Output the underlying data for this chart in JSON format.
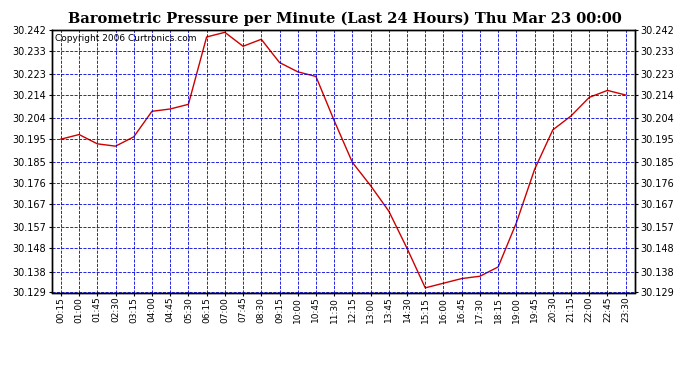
{
  "title": "Barometric Pressure per Minute (Last 24 Hours) Thu Mar 23 00:00",
  "copyright": "Copyright 2006 Curtronics.com",
  "plot_bg_color": "#ffffff",
  "grid_color": "#0000dd",
  "line_color": "#cc0000",
  "outer_bg": "#ffffff",
  "border_color": "#000000",
  "ylim": [
    30.129,
    30.242
  ],
  "yticks": [
    30.129,
    30.138,
    30.148,
    30.157,
    30.167,
    30.176,
    30.185,
    30.195,
    30.204,
    30.214,
    30.223,
    30.233,
    30.242
  ],
  "xtick_labels": [
    "00:15",
    "01:00",
    "01:45",
    "02:30",
    "03:15",
    "04:00",
    "04:45",
    "05:30",
    "06:15",
    "07:00",
    "07:45",
    "08:30",
    "09:15",
    "10:00",
    "10:45",
    "11:30",
    "12:15",
    "13:00",
    "13:45",
    "14:30",
    "15:15",
    "16:00",
    "16:45",
    "17:30",
    "18:15",
    "19:00",
    "19:45",
    "20:30",
    "21:15",
    "22:00",
    "22:45",
    "23:30"
  ],
  "x_values": [
    0,
    1,
    2,
    3,
    4,
    5,
    6,
    7,
    8,
    9,
    10,
    11,
    12,
    13,
    14,
    15,
    16,
    17,
    18,
    19,
    20,
    21,
    22,
    23,
    24,
    25,
    26,
    27,
    28,
    29,
    30,
    31
  ],
  "y_values": [
    30.195,
    30.197,
    30.193,
    30.192,
    30.196,
    30.207,
    30.208,
    30.21,
    30.239,
    30.241,
    30.235,
    30.238,
    30.228,
    30.224,
    30.222,
    30.203,
    30.185,
    30.175,
    30.164,
    30.148,
    30.131,
    30.133,
    30.135,
    30.136,
    30.14,
    30.159,
    30.182,
    30.199,
    30.205,
    30.213,
    30.216,
    30.214
  ]
}
